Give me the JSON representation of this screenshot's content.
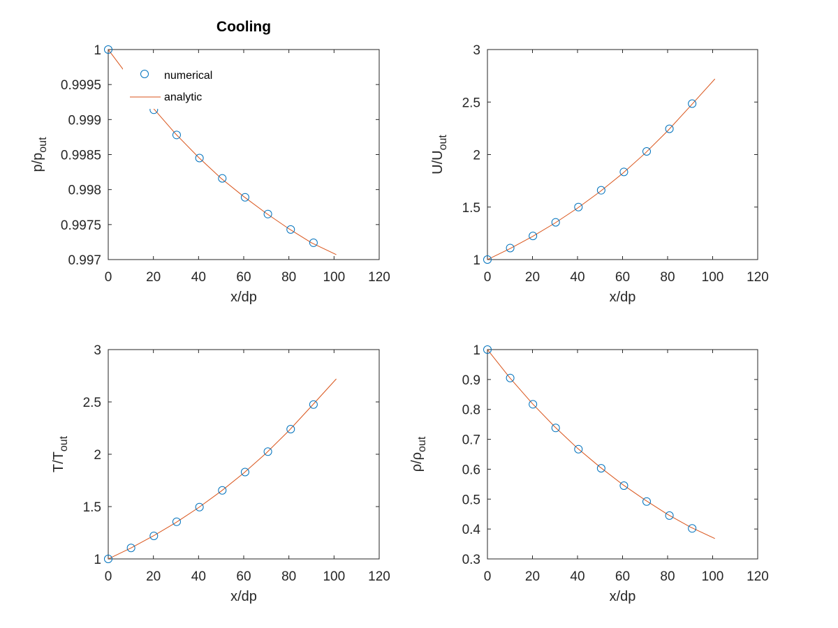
{
  "figure_title": "Cooling",
  "legend": {
    "numerical": "numerical",
    "analytic": "analytic"
  },
  "colors": {
    "marker": "#0072bd",
    "line": "#d95319",
    "axes": "#262626",
    "background": "#ffffff"
  },
  "chart_data": [
    {
      "type": "line",
      "title": "Cooling",
      "xlabel": "x/dp",
      "ylabel": {
        "main": "p/p",
        "sub": "out"
      },
      "xlim": [
        0,
        120
      ],
      "ylim": [
        0.997,
        1
      ],
      "xticks": [
        "0",
        "20",
        "40",
        "60",
        "80",
        "100",
        "120"
      ],
      "yticks": [
        "0.997",
        "0.9975",
        "0.998",
        "0.9985",
        "0.999",
        "0.9995",
        "1"
      ],
      "grid": false,
      "legend_position": "top-left",
      "series": [
        {
          "name": "numerical",
          "style": "markers",
          "x": [
            0,
            10.1,
            20.2,
            30.3,
            40.4,
            50.5,
            60.6,
            70.7,
            80.8,
            90.9
          ],
          "y": [
            1.0,
            0.99956,
            0.99914,
            0.99878,
            0.99845,
            0.99816,
            0.99789,
            0.99765,
            0.99743,
            0.99724
          ]
        },
        {
          "name": "analytic",
          "style": "line",
          "x": [
            0,
            10,
            20,
            30,
            40,
            50,
            60,
            70,
            80,
            90,
            101
          ],
          "y": [
            1.0,
            0.99957,
            0.99916,
            0.99879,
            0.99846,
            0.99816,
            0.9979,
            0.99766,
            0.99744,
            0.99724,
            0.99707
          ]
        }
      ]
    },
    {
      "type": "line",
      "title": "",
      "xlabel": "x/dp",
      "ylabel": {
        "main": "U/U",
        "sub": "out"
      },
      "xlim": [
        0,
        120
      ],
      "ylim": [
        1,
        3
      ],
      "xticks": [
        "0",
        "20",
        "40",
        "60",
        "80",
        "100",
        "120"
      ],
      "yticks": [
        "1",
        "1.5",
        "2",
        "2.5",
        "3"
      ],
      "grid": false,
      "series": [
        {
          "name": "numerical",
          "style": "markers",
          "x": [
            0,
            10.1,
            20.2,
            30.3,
            40.4,
            50.5,
            60.6,
            70.7,
            80.8,
            90.9
          ],
          "y": [
            1.0,
            1.11,
            1.225,
            1.355,
            1.5,
            1.66,
            1.835,
            2.03,
            2.245,
            2.485
          ]
        },
        {
          "name": "analytic",
          "style": "line",
          "x": [
            0,
            10,
            20,
            30,
            40,
            50,
            60,
            70,
            80,
            90,
            101
          ],
          "y": [
            1.0,
            1.104,
            1.22,
            1.348,
            1.49,
            1.647,
            1.82,
            2.012,
            2.225,
            2.459,
            2.72
          ]
        }
      ]
    },
    {
      "type": "line",
      "title": "",
      "xlabel": "x/dp",
      "ylabel": {
        "main": "T/T",
        "sub": "out"
      },
      "xlim": [
        0,
        120
      ],
      "ylim": [
        1,
        3
      ],
      "xticks": [
        "0",
        "20",
        "40",
        "60",
        "80",
        "100",
        "120"
      ],
      "yticks": [
        "1",
        "1.5",
        "2",
        "2.5",
        "3"
      ],
      "grid": false,
      "series": [
        {
          "name": "numerical",
          "style": "markers",
          "x": [
            0,
            10.1,
            20.2,
            30.3,
            40.4,
            50.5,
            60.6,
            70.7,
            80.8,
            90.9
          ],
          "y": [
            1.0,
            1.105,
            1.22,
            1.355,
            1.495,
            1.655,
            1.83,
            2.025,
            2.24,
            2.475
          ]
        },
        {
          "name": "analytic",
          "style": "line",
          "x": [
            0,
            10,
            20,
            30,
            40,
            50,
            60,
            70,
            80,
            90,
            101
          ],
          "y": [
            1.0,
            1.104,
            1.22,
            1.348,
            1.49,
            1.647,
            1.82,
            2.012,
            2.225,
            2.459,
            2.72
          ]
        }
      ]
    },
    {
      "type": "line",
      "title": "",
      "xlabel": "x/dp",
      "ylabel": {
        "main": "ρ/ρ",
        "sub": "out"
      },
      "xlim": [
        0,
        120
      ],
      "ylim": [
        0.3,
        1
      ],
      "xticks": [
        "0",
        "20",
        "40",
        "60",
        "80",
        "100",
        "120"
      ],
      "yticks": [
        "0.3",
        "0.4",
        "0.5",
        "0.6",
        "0.7",
        "0.8",
        "0.9",
        "1"
      ],
      "grid": false,
      "series": [
        {
          "name": "numerical",
          "style": "markers",
          "x": [
            0,
            10.1,
            20.2,
            30.3,
            40.4,
            50.5,
            60.6,
            70.7,
            80.8,
            90.9
          ],
          "y": [
            1.0,
            0.905,
            0.817,
            0.738,
            0.667,
            0.603,
            0.545,
            0.492,
            0.445,
            0.402
          ]
        },
        {
          "name": "analytic",
          "style": "line",
          "x": [
            0,
            10,
            20,
            30,
            40,
            50,
            60,
            70,
            80,
            90,
            101
          ],
          "y": [
            1.0,
            0.905,
            0.819,
            0.741,
            0.67,
            0.607,
            0.549,
            0.497,
            0.449,
            0.407,
            0.368
          ]
        }
      ]
    }
  ]
}
